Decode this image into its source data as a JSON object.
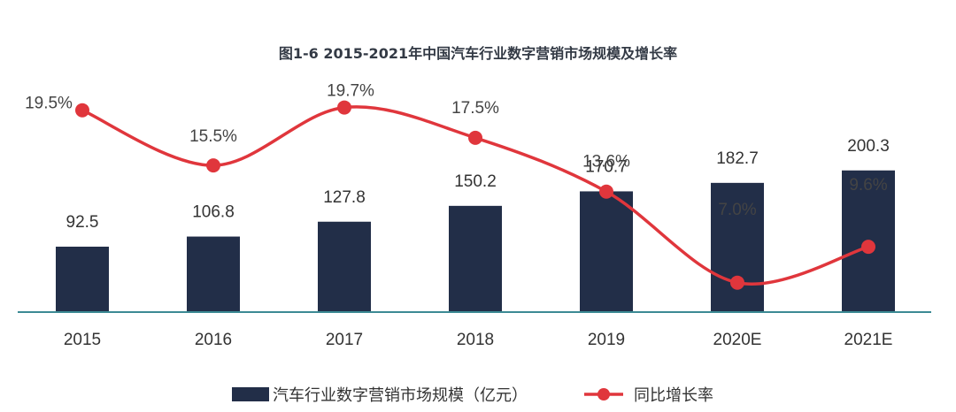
{
  "chart_data": {
    "type": "bar",
    "title": "图1-6  2015-2021年中国汽车行业数字营销市场规模及增长率",
    "categories": [
      "2015",
      "2016",
      "2017",
      "2018",
      "2019",
      "2020E",
      "2021E"
    ],
    "series": [
      {
        "name": "汽车行业数字营销市场规模（亿元）",
        "type": "bar",
        "values": [
          92.5,
          106.8,
          127.8,
          150.2,
          170.7,
          182.7,
          200.3
        ],
        "labels": [
          "92.5",
          "106.8",
          "127.8",
          "150.2",
          "170.7",
          "182.7",
          "200.3"
        ],
        "color": "#222e48"
      },
      {
        "name": "同比增长率",
        "type": "line",
        "values": [
          19.5,
          15.5,
          19.7,
          17.5,
          13.6,
          7.0,
          9.6
        ],
        "labels": [
          "19.5%",
          "15.5%",
          "19.7%",
          "17.5%",
          "13.6%",
          "7.0%",
          "9.6%"
        ],
        "color": "#e0363c"
      }
    ],
    "axis_color": "#3c8a94",
    "legend": "bottom"
  }
}
